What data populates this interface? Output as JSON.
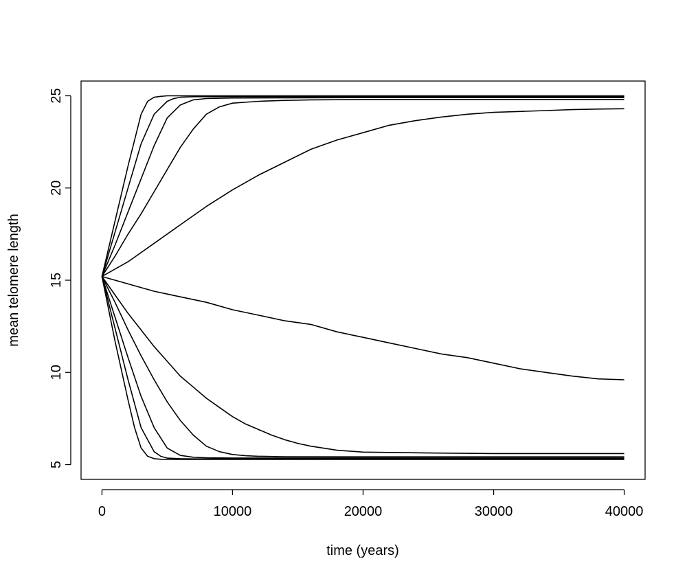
{
  "chart_data": {
    "type": "line",
    "title": "",
    "xlabel": "time (years)",
    "ylabel": "mean telomere length",
    "xlim": [
      -1600,
      41600
    ],
    "ylim": [
      4.2,
      25.8
    ],
    "xticks": [
      0,
      10000,
      20000,
      30000,
      40000
    ],
    "yticks": [
      5,
      10,
      15,
      20,
      25
    ],
    "grid": false,
    "legend": "none",
    "line_color": "#000000",
    "series": [
      {
        "x": [
          0,
          1000,
          2000,
          3000,
          3500,
          4000,
          4500,
          5000,
          6000,
          10000,
          20000,
          30000,
          40000
        ],
        "y": [
          15.2,
          18.2,
          21.2,
          24.0,
          24.7,
          24.92,
          24.97,
          25.0,
          25.0,
          25.0,
          25.0,
          25.0,
          25.0
        ]
      },
      {
        "x": [
          0,
          1000,
          2000,
          3000,
          4000,
          5000,
          5500,
          6000,
          7000,
          10000,
          20000,
          30000,
          40000
        ],
        "y": [
          15.2,
          17.6,
          20.0,
          22.4,
          24.0,
          24.7,
          24.85,
          24.92,
          24.95,
          24.95,
          24.95,
          24.95,
          24.95
        ]
      },
      {
        "x": [
          0,
          1000,
          2000,
          3000,
          4000,
          5000,
          6000,
          7000,
          8000,
          10000,
          20000,
          30000,
          40000
        ],
        "y": [
          15.2,
          16.9,
          18.7,
          20.5,
          22.3,
          23.8,
          24.5,
          24.78,
          24.85,
          24.88,
          24.9,
          24.9,
          24.9
        ]
      },
      {
        "x": [
          0,
          1000,
          2000,
          3000,
          4000,
          5000,
          6000,
          7000,
          8000,
          9000,
          10000,
          12000,
          14000,
          16000,
          20000,
          30000,
          40000
        ],
        "y": [
          15.2,
          16.3,
          17.5,
          18.6,
          19.8,
          21.0,
          22.2,
          23.2,
          24.0,
          24.4,
          24.6,
          24.7,
          24.75,
          24.78,
          24.8,
          24.8,
          24.8
        ]
      },
      {
        "x": [
          0,
          2000,
          4000,
          6000,
          8000,
          10000,
          12000,
          14000,
          16000,
          18000,
          20000,
          22000,
          24000,
          26000,
          28000,
          30000,
          32000,
          34000,
          36000,
          38000,
          40000
        ],
        "y": [
          15.2,
          16.0,
          17.0,
          18.0,
          19.0,
          19.9,
          20.7,
          21.4,
          22.1,
          22.6,
          23.0,
          23.4,
          23.65,
          23.85,
          24.0,
          24.1,
          24.15,
          24.2,
          24.25,
          24.28,
          24.3
        ]
      },
      {
        "x": [
          0,
          2000,
          4000,
          6000,
          8000,
          10000,
          12000,
          14000,
          16000,
          18000,
          20000,
          22000,
          24000,
          26000,
          28000,
          30000,
          32000,
          34000,
          36000,
          38000,
          40000
        ],
        "y": [
          15.2,
          14.8,
          14.4,
          14.1,
          13.8,
          13.4,
          13.1,
          12.8,
          12.6,
          12.2,
          11.9,
          11.6,
          11.3,
          11.0,
          10.8,
          10.5,
          10.2,
          10.0,
          9.8,
          9.65,
          9.6
        ]
      },
      {
        "x": [
          0,
          1000,
          2000,
          3000,
          4000,
          5000,
          6000,
          7000,
          8000,
          9000,
          10000,
          11000,
          12000,
          13000,
          14000,
          15000,
          16000,
          18000,
          20000,
          25000,
          30000,
          35000,
          40000
        ],
        "y": [
          15.2,
          14.2,
          13.2,
          12.3,
          11.4,
          10.6,
          9.8,
          9.2,
          8.6,
          8.1,
          7.6,
          7.2,
          6.9,
          6.6,
          6.35,
          6.15,
          6.0,
          5.78,
          5.68,
          5.63,
          5.6,
          5.6,
          5.6
        ]
      },
      {
        "x": [
          0,
          1000,
          2000,
          3000,
          4000,
          5000,
          6000,
          7000,
          8000,
          9000,
          10000,
          11000,
          12000,
          14000,
          20000,
          30000,
          40000
        ],
        "y": [
          15.2,
          13.8,
          12.3,
          10.9,
          9.6,
          8.4,
          7.4,
          6.6,
          6.0,
          5.7,
          5.55,
          5.48,
          5.45,
          5.43,
          5.42,
          5.42,
          5.42
        ]
      },
      {
        "x": [
          0,
          1000,
          2000,
          3000,
          4000,
          5000,
          6000,
          7000,
          8000,
          10000,
          20000,
          30000,
          40000
        ],
        "y": [
          15.2,
          13.0,
          10.8,
          8.7,
          7.0,
          5.9,
          5.5,
          5.4,
          5.37,
          5.36,
          5.36,
          5.36,
          5.36
        ]
      },
      {
        "x": [
          0,
          1000,
          2000,
          3000,
          4000,
          4500,
          5000,
          6000,
          7000,
          10000,
          20000,
          30000,
          40000
        ],
        "y": [
          15.2,
          12.4,
          9.6,
          7.0,
          5.7,
          5.45,
          5.35,
          5.32,
          5.31,
          5.31,
          5.31,
          5.31,
          5.31
        ]
      },
      {
        "x": [
          0,
          1000,
          2000,
          2500,
          3000,
          3500,
          4000,
          4500,
          5000,
          6000,
          10000,
          20000,
          30000,
          40000
        ],
        "y": [
          15.2,
          11.7,
          8.5,
          7.0,
          5.9,
          5.45,
          5.32,
          5.29,
          5.28,
          5.28,
          5.28,
          5.28,
          5.28,
          5.28
        ]
      }
    ]
  }
}
